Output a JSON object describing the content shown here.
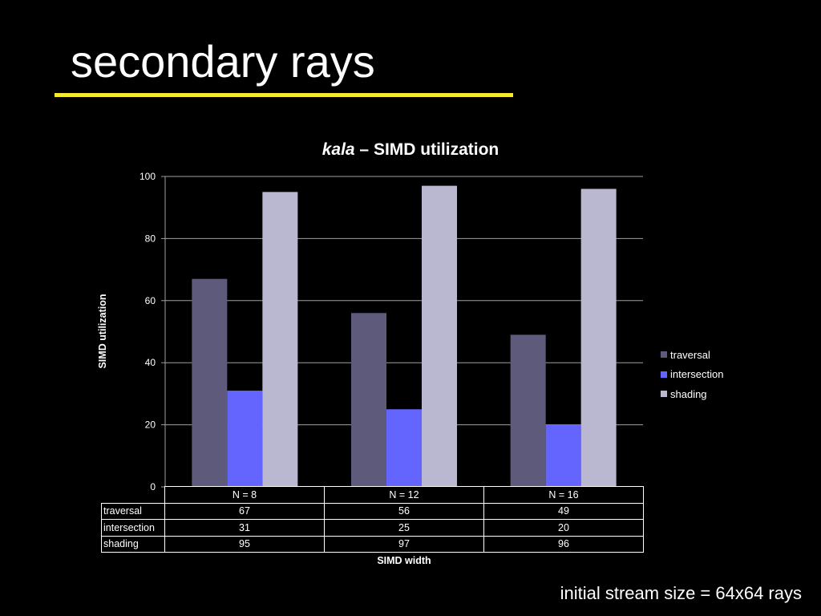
{
  "slide": {
    "title": "secondary rays",
    "footnote": "initial stream size = 64x64 rays"
  },
  "chart_data": {
    "type": "bar",
    "title_emphasis": "kala",
    "title_rest": " – SIMD utilization",
    "xlabel": "SIMD width",
    "ylabel": "SIMD utilization",
    "ylim": [
      0,
      100
    ],
    "yticks": [
      0,
      20,
      40,
      60,
      80,
      100
    ],
    "grid": true,
    "legend_position": "right",
    "categories": [
      "N = 8",
      "N = 12",
      "N = 16"
    ],
    "series": [
      {
        "name": "traversal",
        "color": "#5e5a7c",
        "values": [
          67,
          56,
          49
        ]
      },
      {
        "name": "intersection",
        "color": "#6464ff",
        "values": [
          31,
          25,
          20
        ]
      },
      {
        "name": "shading",
        "color": "#b9b8d0",
        "values": [
          95,
          97,
          96
        ]
      }
    ]
  }
}
